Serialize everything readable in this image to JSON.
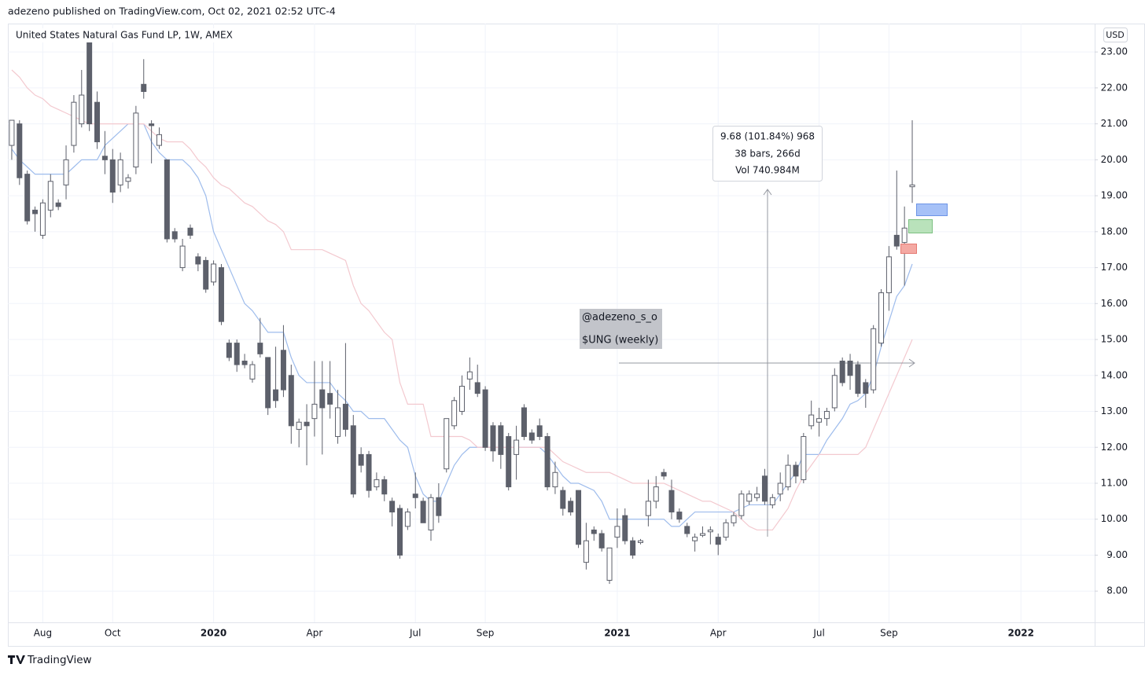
{
  "header": {
    "published": "adezeno published on TradingView.com, Oct 02, 2021 02:52 UTC-4"
  },
  "annotations": {
    "measure": [
      "9.68 (101.84%) 968",
      "38 bars, 266d",
      "Vol 740.984M"
    ],
    "note": [
      "@adezeno_s_o",
      "$UNG (weekly)"
    ]
  },
  "footer": {
    "brand": "TradingView"
  },
  "chart_data": {
    "type": "candlestick",
    "title": "United States Natural Gas Fund LP, 1W, AMEX",
    "currency": "USD",
    "up_color": "#ffffff",
    "down_color": "#5d606b",
    "wick_color": "#5d606b",
    "grid": true,
    "ylim": [
      7.13,
      23.79
    ],
    "yticks": [
      {
        "value": 8,
        "label": "8.00"
      },
      {
        "value": 9,
        "label": "9.00"
      },
      {
        "value": 10,
        "label": "10.00"
      },
      {
        "value": 11,
        "label": "11.00"
      },
      {
        "value": 12,
        "label": "12.00"
      },
      {
        "value": 13,
        "label": "13.00"
      },
      {
        "value": 14,
        "label": "14.00"
      },
      {
        "value": 15,
        "label": "15.00"
      },
      {
        "value": 16,
        "label": "16.00"
      },
      {
        "value": 17,
        "label": "17.00"
      },
      {
        "value": 18,
        "label": "18.00"
      },
      {
        "value": 19,
        "label": "19.00"
      },
      {
        "value": 20,
        "label": "20.00"
      },
      {
        "value": 21,
        "label": "21.00"
      },
      {
        "value": 22,
        "label": "22.00"
      },
      {
        "value": 23,
        "label": "23.00"
      }
    ],
    "categories": [
      null,
      null,
      null,
      null,
      "Aug",
      null,
      null,
      null,
      null,
      null,
      null,
      null,
      null,
      "Oct",
      null,
      null,
      null,
      null,
      null,
      null,
      null,
      null,
      null,
      null,
      null,
      null,
      "2020",
      null,
      null,
      null,
      null,
      null,
      null,
      null,
      null,
      null,
      null,
      null,
      null,
      "Apr",
      null,
      null,
      null,
      null,
      null,
      null,
      null,
      null,
      null,
      null,
      null,
      null,
      "Jul",
      null,
      null,
      null,
      null,
      null,
      null,
      null,
      null,
      "Sep",
      null,
      null,
      null,
      null,
      null,
      null,
      null,
      null,
      null,
      null,
      null,
      null,
      null,
      null,
      null,
      null,
      "2021",
      null,
      null,
      null,
      null,
      null,
      null,
      null,
      null,
      null,
      null,
      null,
      null,
      "Apr",
      null,
      null,
      null,
      null,
      null,
      null,
      null,
      null,
      null,
      null,
      null,
      null,
      "Jul",
      null,
      null,
      null,
      null,
      null,
      null,
      null,
      null,
      "Sep",
      null,
      null,
      null,
      null,
      null,
      null,
      null,
      null,
      null,
      null,
      null,
      null,
      null,
      null,
      null,
      null,
      "2022",
      null,
      null,
      null,
      null,
      null,
      null,
      null,
      null,
      null
    ],
    "open": [
      20.4,
      21.0,
      19.6,
      18.6,
      17.9,
      18.6,
      18.8,
      19.3,
      20.4,
      21.0,
      23.3,
      21.6,
      20.1,
      20.0,
      19.3,
      19.4,
      19.8,
      22.1,
      21.0,
      20.4,
      20.0,
      18.0,
      17.0,
      18.1,
      17.3,
      17.2,
      16.6,
      17.0,
      14.9,
      14.9,
      14.4,
      13.9,
      14.9,
      14.5,
      13.6,
      14.7,
      14.0,
      12.5,
      12.7,
      12.8,
      13.6,
      13.5,
      12.3,
      13.2,
      12.6,
      11.8,
      11.8,
      10.9,
      11.1,
      10.5,
      10.3,
      9.8,
      10.7,
      10.5,
      9.7,
      10.6,
      11.4,
      12.6,
      13.0,
      13.9,
      13.8,
      13.6,
      12.6,
      12.6,
      12.3,
      11.8,
      13.1,
      12.4,
      12.6,
      12.3,
      10.9,
      10.8,
      10.5,
      10.8,
      8.8,
      9.7,
      9.6,
      8.3,
      9.5,
      10.1,
      9.4,
      9.35,
      10.1,
      10.5,
      11.3,
      10.8,
      10.2,
      9.8,
      9.4,
      9.55,
      9.65,
      9.5,
      9.5,
      9.9,
      10.1,
      10.5,
      10.6,
      11.2,
      10.4,
      10.7,
      10.9,
      11.5,
      11.1,
      12.6,
      12.7,
      12.8,
      13.1,
      14.4,
      14.4,
      14.3,
      13.8,
      13.6,
      14.9,
      16.3,
      17.9,
      17.7,
      19.25,
      null,
      null,
      null,
      null,
      null,
      null,
      null,
      null,
      null,
      null,
      null,
      null,
      null,
      null,
      null,
      null,
      null,
      null,
      null,
      null,
      null,
      null,
      null
    ],
    "high": [
      21.1,
      21.1,
      19.7,
      18.7,
      18.9,
      19.6,
      18.9,
      20.4,
      21.8,
      22.5,
      23.5,
      21.9,
      20.8,
      20.3,
      20.2,
      19.6,
      21.5,
      22.8,
      21.1,
      20.9,
      20.0,
      18.1,
      17.8,
      18.2,
      17.4,
      17.3,
      17.2,
      17.1,
      15.0,
      15.0,
      14.6,
      14.4,
      15.6,
      14.5,
      14.8,
      15.4,
      14.3,
      12.8,
      13.2,
      14.4,
      14.4,
      14.4,
      13.6,
      14.9,
      12.9,
      12.0,
      11.9,
      11.3,
      11.2,
      10.6,
      10.4,
      10.3,
      11.3,
      10.6,
      10.7,
      11.0,
      12.8,
      13.4,
      14.0,
      14.5,
      14.3,
      13.7,
      12.7,
      12.7,
      12.4,
      12.6,
      13.2,
      12.5,
      12.8,
      12.4,
      11.6,
      10.9,
      10.6,
      10.8,
      9.9,
      9.8,
      9.7,
      9.2,
      10.3,
      10.3,
      9.5,
      9.45,
      11.1,
      11.2,
      11.4,
      11.1,
      10.3,
      9.9,
      9.6,
      9.8,
      9.8,
      9.6,
      10.0,
      10.2,
      10.8,
      10.8,
      10.9,
      11.4,
      10.7,
      11.3,
      11.8,
      11.6,
      12.4,
      13.3,
      13.1,
      13.1,
      14.2,
      14.5,
      14.6,
      14.4,
      13.9,
      15.4,
      16.4,
      17.6,
      19.7,
      18.7,
      21.1,
      null,
      null,
      null,
      null,
      null,
      null,
      null,
      null,
      null,
      null,
      null,
      null,
      null,
      null,
      null,
      null,
      null,
      null,
      null,
      null,
      null,
      null,
      null
    ],
    "low": [
      20.0,
      19.3,
      18.2,
      18.0,
      17.8,
      18.4,
      18.6,
      18.9,
      20.2,
      20.9,
      20.8,
      20.3,
      19.6,
      18.8,
      19.1,
      19.2,
      19.6,
      21.7,
      19.9,
      20.3,
      17.7,
      17.7,
      16.9,
      17.8,
      16.9,
      16.3,
      16.5,
      15.4,
      14.4,
      14.1,
      14.2,
      13.8,
      14.5,
      12.9,
      13.1,
      13.4,
      12.1,
      12.0,
      11.5,
      12.3,
      11.8,
      12.8,
      12.1,
      12.3,
      10.6,
      11.3,
      10.6,
      10.8,
      10.5,
      9.8,
      8.9,
      9.7,
      10.3,
      9.9,
      9.4,
      9.9,
      11.3,
      12.5,
      12.9,
      13.6,
      13.4,
      11.9,
      11.6,
      11.4,
      10.8,
      11.1,
      12.2,
      12.1,
      12.2,
      10.8,
      10.7,
      10.1,
      10.1,
      9.2,
      8.6,
      9.4,
      9.1,
      8.2,
      9.2,
      9.3,
      8.9,
      9.3,
      9.8,
      10.3,
      11.1,
      10.0,
      9.9,
      9.5,
      9.1,
      9.5,
      9.3,
      9.0,
      9.4,
      9.8,
      10.0,
      10.4,
      10.5,
      10.4,
      10.3,
      10.5,
      10.8,
      11.0,
      11.0,
      12.5,
      12.3,
      12.6,
      13.0,
      13.7,
      13.6,
      13.4,
      13.1,
      13.5,
      14.8,
      15.8,
      17.5,
      16.5,
      18.8,
      null,
      null,
      null,
      null,
      null,
      null,
      null,
      null,
      null,
      null,
      null,
      null,
      null,
      null,
      null,
      null,
      null,
      null,
      null,
      null,
      null,
      null,
      null
    ],
    "close": [
      21.1,
      19.5,
      18.3,
      18.5,
      18.8,
      19.4,
      18.7,
      20.0,
      21.6,
      21.8,
      21.0,
      20.5,
      20.0,
      19.1,
      20.0,
      19.5,
      21.3,
      21.9,
      20.95,
      20.7,
      17.8,
      17.8,
      17.6,
      17.9,
      17.1,
      16.4,
      17.1,
      15.5,
      14.5,
      14.3,
      14.3,
      14.3,
      14.6,
      13.1,
      13.3,
      13.6,
      12.6,
      12.7,
      12.6,
      13.2,
      13.1,
      13.2,
      13.1,
      12.5,
      10.7,
      11.5,
      10.8,
      11.1,
      10.7,
      10.2,
      9.0,
      10.2,
      10.6,
      9.9,
      10.6,
      10.1,
      12.8,
      13.3,
      13.7,
      14.1,
      13.5,
      12.0,
      11.9,
      11.8,
      10.9,
      12.2,
      12.3,
      12.2,
      12.3,
      10.9,
      11.3,
      10.3,
      10.2,
      9.3,
      9.4,
      9.6,
      9.2,
      9.2,
      9.8,
      9.4,
      9.0,
      9.4,
      10.5,
      10.9,
      11.2,
      10.2,
      10.0,
      9.6,
      9.5,
      9.6,
      9.7,
      9.3,
      9.9,
      10.1,
      10.7,
      10.7,
      10.7,
      10.5,
      10.6,
      11.0,
      11.5,
      11.2,
      12.3,
      12.9,
      12.8,
      13.0,
      14.0,
      13.8,
      14.0,
      13.5,
      13.5,
      15.3,
      16.3,
      17.3,
      17.6,
      18.1,
      19.3,
      null,
      null,
      null,
      null,
      null,
      null,
      null,
      null,
      null,
      null,
      null,
      null,
      null,
      null,
      null,
      null,
      null,
      null,
      null,
      null,
      null,
      null,
      null
    ],
    "lines": [
      {
        "color": "#9ebcec",
        "values": [
          20.3,
          20.0,
          19.8,
          19.6,
          19.6,
          19.6,
          19.6,
          19.6,
          19.8,
          20.0,
          20.0,
          20.0,
          20.4,
          20.6,
          20.8,
          21.0,
          21.0,
          21.0,
          20.5,
          20.2,
          20.0,
          20.0,
          20.0,
          19.8,
          19.5,
          19.0,
          18.0,
          17.5,
          17.0,
          16.5,
          16.0,
          15.8,
          15.5,
          15.2,
          15.2,
          15.2,
          14.5,
          14.0,
          13.8,
          13.8,
          13.8,
          13.8,
          13.5,
          13.3,
          13.0,
          13.0,
          12.8,
          12.8,
          12.8,
          12.5,
          12.2,
          12.0,
          11.2,
          10.7,
          10.5,
          10.5,
          11.0,
          11.5,
          11.8,
          12.0,
          12.0,
          12.0,
          12.0,
          12.0,
          12.0,
          12.0,
          12.0,
          12.0,
          12.0,
          11.8,
          11.5,
          11.2,
          11.0,
          11.0,
          10.9,
          10.8,
          10.5,
          10.0,
          10.0,
          10.0,
          10.0,
          10.0,
          10.0,
          10.0,
          10.0,
          9.8,
          9.8,
          10.0,
          10.2,
          10.2,
          10.2,
          10.2,
          10.2,
          10.2,
          10.3,
          10.4,
          10.4,
          10.4,
          10.4,
          10.7,
          11.0,
          11.3,
          11.8,
          11.8,
          11.8,
          12.2,
          12.5,
          12.8,
          13.2,
          13.3,
          13.5,
          14.0,
          14.8,
          15.5,
          16.2,
          16.5,
          17.1,
          null,
          null,
          null,
          null,
          null,
          null,
          null,
          null,
          null,
          null,
          null,
          null,
          null,
          null,
          null,
          null,
          null,
          null,
          null,
          null,
          null,
          null,
          null
        ]
      },
      {
        "color": "#f3c9cf",
        "values": [
          22.5,
          22.3,
          22.0,
          21.8,
          21.7,
          21.5,
          21.4,
          21.3,
          21.2,
          21.1,
          21.0,
          21.0,
          21.0,
          21.0,
          21.0,
          21.0,
          21.0,
          21.0,
          20.8,
          20.6,
          20.5,
          20.5,
          20.5,
          20.3,
          20.0,
          19.8,
          19.5,
          19.3,
          19.2,
          19.0,
          18.8,
          18.7,
          18.5,
          18.3,
          18.2,
          18.0,
          17.5,
          17.5,
          17.5,
          17.5,
          17.5,
          17.4,
          17.3,
          17.2,
          16.5,
          16.0,
          15.8,
          15.5,
          15.2,
          15.0,
          13.8,
          13.2,
          13.2,
          13.2,
          12.3,
          12.3,
          12.3,
          12.3,
          12.3,
          12.2,
          12.0,
          12.0,
          12.0,
          12.0,
          12.0,
          12.0,
          12.0,
          12.0,
          12.0,
          12.0,
          11.8,
          11.6,
          11.5,
          11.4,
          11.3,
          11.3,
          11.3,
          11.3,
          11.2,
          11.1,
          11.0,
          11.0,
          11.0,
          11.0,
          11.0,
          10.9,
          10.8,
          10.7,
          10.6,
          10.5,
          10.5,
          10.4,
          10.3,
          10.2,
          10.0,
          9.8,
          9.7,
          9.7,
          9.7,
          10.0,
          10.3,
          10.8,
          11.2,
          11.5,
          11.8,
          11.8,
          11.8,
          11.8,
          11.8,
          11.8,
          12.0,
          12.5,
          13.0,
          13.5,
          14.0,
          14.5,
          15.0,
          null,
          null,
          null,
          null,
          null,
          null,
          null,
          null,
          null,
          null,
          null,
          null,
          null,
          null,
          null,
          null,
          null,
          null,
          null,
          null,
          null,
          null,
          null
        ]
      }
    ]
  }
}
